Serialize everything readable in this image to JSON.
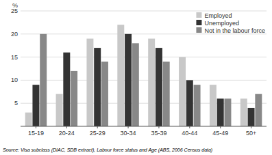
{
  "chart_data": {
    "type": "bar",
    "categories": [
      "15-19",
      "20-24",
      "25-29",
      "30-34",
      "35-39",
      "40-44",
      "45-49",
      "50+"
    ],
    "series": [
      {
        "name": "Employed",
        "color": "#c8c8c8",
        "values": [
          3,
          7,
          19,
          22,
          19,
          15,
          9,
          6
        ]
      },
      {
        "name": "Unemployed",
        "color": "#333333",
        "values": [
          9,
          16,
          17,
          20,
          17,
          10,
          6,
          4
        ]
      },
      {
        "name": "Not in the labour force",
        "color": "#888888",
        "values": [
          20,
          12,
          14,
          18,
          14,
          9,
          6,
          7
        ]
      }
    ],
    "y_label": "%",
    "ylim": [
      0,
      25
    ],
    "yticks": [
      5,
      10,
      15,
      20,
      25
    ],
    "grid": true,
    "legend": "top-right",
    "annotations": [
      "Source: Visa subclass (DIAC, SDB extract), Labour force status and Age (ABS, 2006 Census data)"
    ]
  }
}
